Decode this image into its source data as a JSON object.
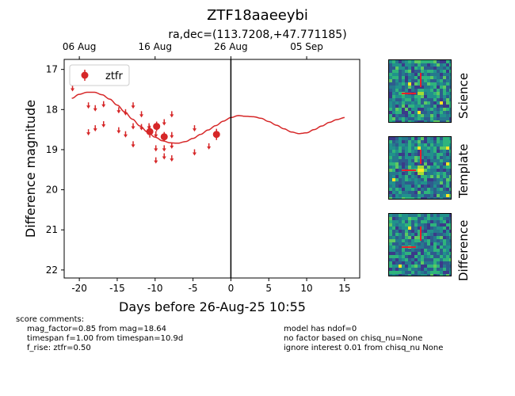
{
  "chart_data": {
    "type": "scatter",
    "title": "ZTF18aaeeybi",
    "subtitle": "ra,dec=(113.7208,+47.771185)",
    "xlabel": "Days before 26-Aug-25 10:55",
    "ylabel": "Difference magnitude",
    "xlim": [
      -22,
      17
    ],
    "ylim": [
      22.2,
      16.75
    ],
    "y_inverted": true,
    "xticks": [
      -20,
      -15,
      -10,
      -5,
      0,
      5,
      10,
      15
    ],
    "yticks": [
      17,
      18,
      19,
      20,
      21,
      22
    ],
    "top_axis_ticks": [
      {
        "x": -20.0,
        "label": "06 Aug"
      },
      {
        "x": -10.0,
        "label": "16 Aug"
      },
      {
        "x": 0.0,
        "label": "26 Aug"
      },
      {
        "x": 10.0,
        "label": "05 Sep"
      }
    ],
    "vline_x": 0,
    "legend": {
      "location": "upper-left",
      "entries": [
        "ztfr"
      ]
    },
    "series_color": "#d62728",
    "detections": [
      {
        "x": -10.7,
        "y": 18.55,
        "err": 0.15
      },
      {
        "x": -9.8,
        "y": 18.42,
        "err": 0.12
      },
      {
        "x": -8.8,
        "y": 18.68,
        "err": 0.12
      },
      {
        "x": -1.9,
        "y": 18.62,
        "err": 0.14
      }
    ],
    "upper_limits": [
      {
        "x": -20.9,
        "y": 17.45
      },
      {
        "x": -18.8,
        "y": 17.88
      },
      {
        "x": -18.8,
        "y": 18.55
      },
      {
        "x": -17.9,
        "y": 17.95
      },
      {
        "x": -17.9,
        "y": 18.45
      },
      {
        "x": -16.8,
        "y": 17.85
      },
      {
        "x": -16.8,
        "y": 18.35
      },
      {
        "x": -14.8,
        "y": 18.0
      },
      {
        "x": -14.8,
        "y": 18.5
      },
      {
        "x": -13.9,
        "y": 18.05
      },
      {
        "x": -13.9,
        "y": 18.6
      },
      {
        "x": -12.9,
        "y": 17.88
      },
      {
        "x": -12.9,
        "y": 18.4
      },
      {
        "x": -12.9,
        "y": 18.85
      },
      {
        "x": -11.8,
        "y": 18.1
      },
      {
        "x": -11.8,
        "y": 18.42
      },
      {
        "x": -10.8,
        "y": 18.4
      },
      {
        "x": -9.9,
        "y": 18.95
      },
      {
        "x": -9.9,
        "y": 19.25
      },
      {
        "x": -9.9,
        "y": 18.6
      },
      {
        "x": -8.8,
        "y": 18.95
      },
      {
        "x": -8.8,
        "y": 19.15
      },
      {
        "x": -8.8,
        "y": 18.3
      },
      {
        "x": -7.8,
        "y": 18.1
      },
      {
        "x": -7.8,
        "y": 18.62
      },
      {
        "x": -7.8,
        "y": 18.88
      },
      {
        "x": -7.8,
        "y": 19.2
      },
      {
        "x": -4.8,
        "y": 18.45
      },
      {
        "x": -4.8,
        "y": 19.05
      },
      {
        "x": -2.9,
        "y": 18.9
      }
    ],
    "model": {
      "x": [
        -21,
        -20,
        -19,
        -18,
        -17,
        -16,
        -15,
        -14,
        -13,
        -12,
        -11,
        -10,
        -9,
        -8,
        -7,
        -6,
        -5,
        -4,
        -3,
        -2,
        -1,
        0,
        1,
        2,
        3,
        4,
        5,
        6,
        7,
        8,
        9,
        10,
        11,
        12,
        13,
        14,
        15
      ],
      "y": [
        17.72,
        17.62,
        17.57,
        17.57,
        17.63,
        17.74,
        17.89,
        18.06,
        18.24,
        18.41,
        18.56,
        18.69,
        18.78,
        18.83,
        18.84,
        18.8,
        18.72,
        18.62,
        18.51,
        18.4,
        18.29,
        18.2,
        18.15,
        18.17,
        18.18,
        18.22,
        18.3,
        18.39,
        18.48,
        18.56,
        18.6,
        18.58,
        18.5,
        18.41,
        18.32,
        18.25,
        18.2
      ]
    }
  },
  "cutouts": [
    {
      "label": "Science"
    },
    {
      "label": "Template"
    },
    {
      "label": "Difference"
    }
  ],
  "comments": {
    "header": "score comments:",
    "left": [
      "mag_factor=0.85 from mag=18.64",
      "timespan f=1.00 from timespan=10.9d",
      "f_rise: ztfr=0.50"
    ],
    "right": [
      "model has ndof=0",
      "no factor based on chisq_nu=None",
      "ignore interest 0.01 from chisq_nu None"
    ]
  }
}
